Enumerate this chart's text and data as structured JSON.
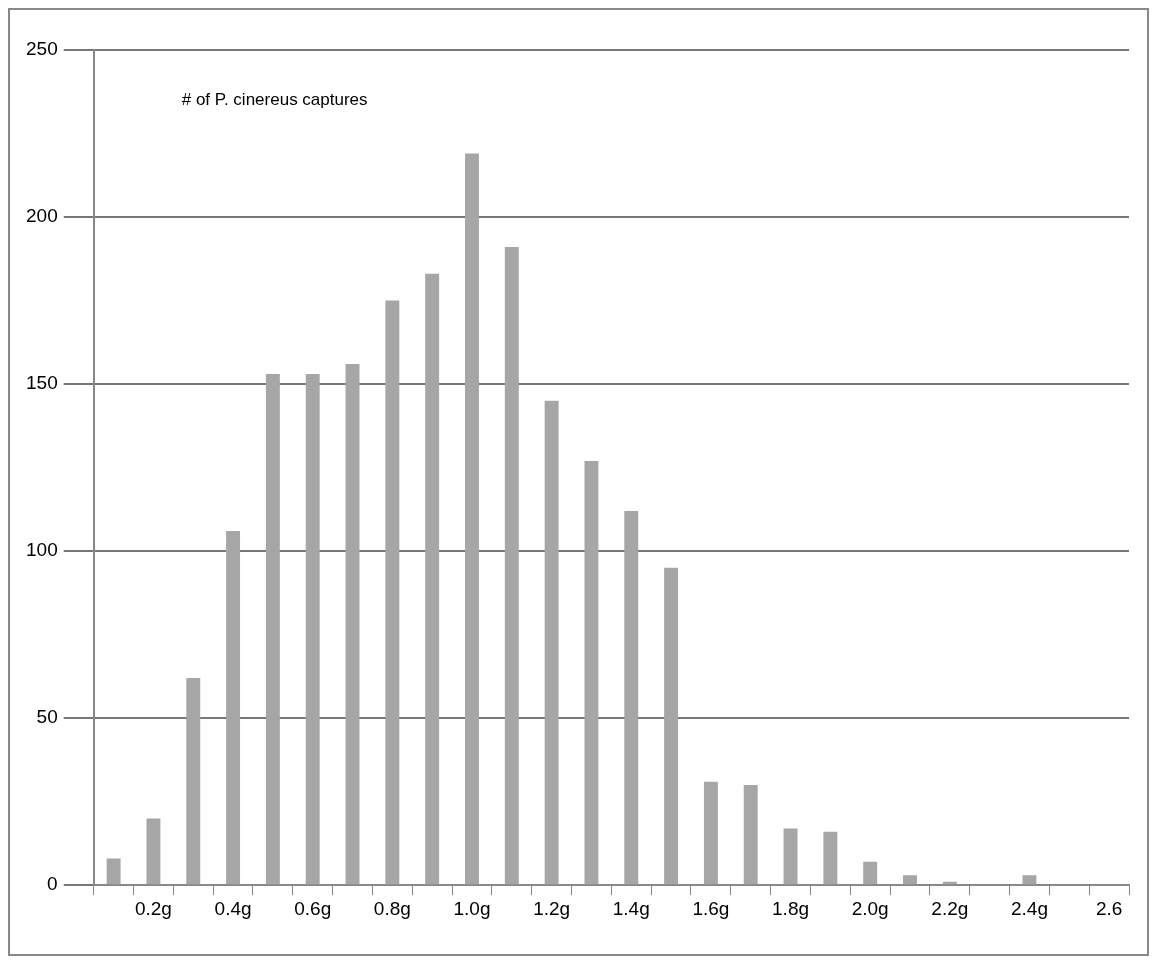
{
  "chart_data": {
    "type": "bar",
    "categories": [
      null,
      "0.2g",
      null,
      "0.4g",
      null,
      "0.6g",
      null,
      "0.8g",
      null,
      "1.0g",
      null,
      "1.2g",
      null,
      "1.4g",
      null,
      "1.6g",
      null,
      "1.8g",
      null,
      "2.0g",
      null,
      "2.2g",
      null,
      "2.4g",
      null,
      "2.6"
    ],
    "values": [
      8,
      20,
      62,
      106,
      153,
      153,
      156,
      175,
      183,
      219,
      191,
      145,
      127,
      112,
      95,
      31,
      30,
      17,
      16,
      7,
      3,
      1,
      0,
      3,
      0,
      0
    ],
    "color": "#a6a6a6",
    "ylim": [
      0,
      250
    ],
    "yticks": [
      0,
      50,
      100,
      150,
      200,
      250
    ],
    "grid": "y",
    "legend": false,
    "annotations": [
      "# of P. cinereus captures"
    ]
  }
}
